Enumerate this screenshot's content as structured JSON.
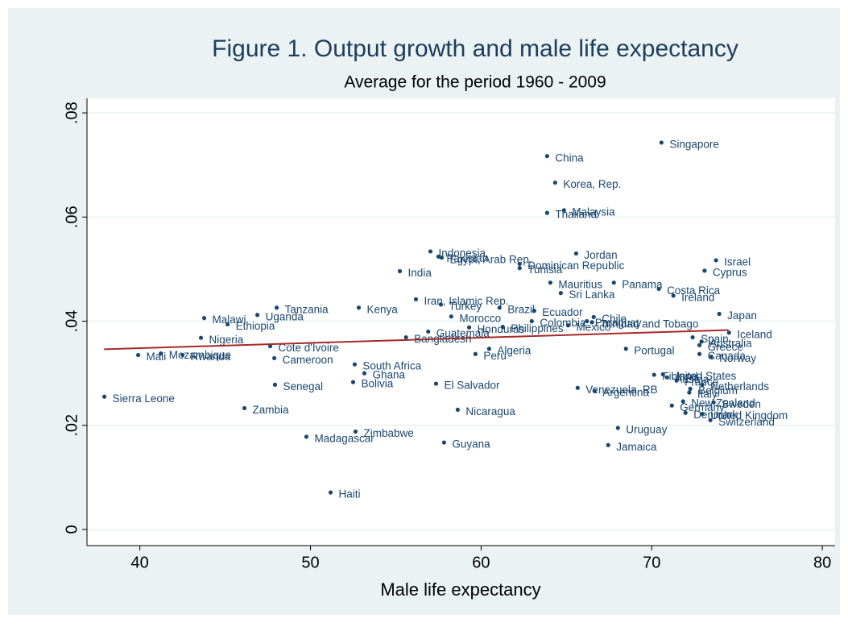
{
  "chart_data": {
    "type": "scatter",
    "title": "Figure 1. Output growth and male life expectancy",
    "subtitle": "Average for the period 1960 - 2009",
    "x_label": "Male life expectancy",
    "color": "#1a476f",
    "point_labels": [
      "Singapore",
      "China",
      "Korea, Rep.",
      "Malaysia",
      "Thailand",
      "Indonesia",
      "Pakistan",
      "Egypt, Arab Rep.",
      "Jordan",
      "Israel",
      "Dominican Republic",
      "Tunisia",
      "India",
      "Cyprus",
      "Mauritius",
      "Panama",
      "Sri Lanka",
      "Costa Rica",
      "Ireland",
      "Iran, Islamic Rep.",
      "Turkey",
      "Brazil",
      "Tanzania",
      "Kenya",
      "Ecuador",
      "Uganda",
      "Japan",
      "Malawi",
      "Morocco",
      "Chile",
      "Colombia",
      "Paraguay",
      "Trinidad and Tobago",
      "Mexico",
      "Ethiopia",
      "Honduras",
      "Philippines",
      "Iceland",
      "Guatemala",
      "Bangladesh",
      "Nigeria",
      "Spain",
      "Australia",
      "Greece",
      "Cote d'Ivoire",
      "Algeria",
      "Portugal",
      "Peru",
      "Canada",
      "Mali",
      "Mozambique",
      "Rwanda",
      "Norway",
      "Cameroon",
      "South Africa",
      "Ghana",
      "United States",
      "Finland",
      "Austria",
      "France",
      "Senegal",
      "Bolivia",
      "El Salvador",
      "Netherlands",
      "Venezuela, RB",
      "Argentina",
      "Belgium",
      "Italy",
      "Sierra Leone",
      "New Zealand",
      "Sweden",
      "Germany",
      "Zambia",
      "Nicaragua",
      "Denmark",
      "United Kingdom",
      "Switzerland",
      "Uruguay",
      "Zimbabwe",
      "Madagascar",
      "Guyana",
      "Jamaica",
      "Haiti"
    ],
    "x": [
      70.57,
      63.87,
      64.34,
      64.86,
      63.87,
      57.03,
      57.5,
      57.69,
      65.57,
      73.77,
      62.26,
      62.26,
      55.24,
      73.1,
      64.06,
      67.78,
      64.67,
      70.42,
      71.27,
      56.18,
      57.64,
      61.08,
      48.02,
      52.83,
      63.11,
      46.89,
      73.96,
      43.77,
      58.25,
      66.6,
      62.97,
      66.2,
      66.5,
      65.1,
      45.14,
      59.3,
      61.27,
      74.53,
      56.9,
      55.6,
      43.58,
      72.4,
      72.92,
      72.8,
      47.64,
      60.47,
      68.49,
      59.67,
      72.8,
      39.9,
      41.23,
      42.5,
      73.49,
      47.88,
      52.59,
      53.16,
      70.66,
      70.14,
      70.9,
      71.46,
      47.92,
      52.5,
      57.36,
      72.97,
      65.66,
      66.65,
      72.26,
      72.2,
      37.92,
      71.84,
      73.63,
      71.18,
      46.13,
      58.63,
      71.98,
      72.97,
      73.44,
      68.02,
      52.64,
      49.76,
      57.83,
      67.45,
      51.18
    ],
    "values": [
      0.0743,
      0.0717,
      0.0666,
      0.0613,
      0.0608,
      0.0534,
      0.0524,
      0.0522,
      0.053,
      0.0517,
      0.051,
      0.0502,
      0.0496,
      0.0497,
      0.0474,
      0.0474,
      0.0454,
      0.0462,
      0.0449,
      0.0442,
      0.0432,
      0.0426,
      0.0426,
      0.0426,
      0.042,
      0.0412,
      0.0414,
      0.0406,
      0.0409,
      0.0408,
      0.04,
      0.04,
      0.0398,
      0.0392,
      0.0394,
      0.0388,
      0.0389,
      0.0378,
      0.038,
      0.0369,
      0.0368,
      0.0369,
      0.0361,
      0.0354,
      0.0352,
      0.0347,
      0.0347,
      0.0337,
      0.0337,
      0.0335,
      0.0338,
      0.0335,
      0.0332,
      0.0329,
      0.0317,
      0.03,
      0.0298,
      0.0297,
      0.0292,
      0.0286,
      0.0278,
      0.0283,
      0.028,
      0.0278,
      0.0272,
      0.0266,
      0.027,
      0.0263,
      0.0255,
      0.0246,
      0.0244,
      0.0238,
      0.0233,
      0.023,
      0.0224,
      0.0222,
      0.021,
      0.0195,
      0.0188,
      0.0178,
      0.0167,
      0.0162,
      0.0071
    ],
    "fit_line": {
      "x": [
        37.9,
        74.5
      ],
      "y": [
        0.0346,
        0.0383
      ],
      "color": "#a52a2a"
    },
    "xlim": [
      36.9,
      80.75
    ],
    "ylim": [
      -0.0031,
      0.0828
    ],
    "xticks": [
      40,
      50,
      60,
      70,
      80
    ],
    "yticks": [
      {
        "value": 0,
        "label": "0"
      },
      {
        "value": 0.02,
        "label": ".02"
      },
      {
        "value": 0.04,
        "label": ".04"
      },
      {
        "value": 0.06,
        "label": ".06"
      },
      {
        "value": 0.08,
        "label": ".08"
      }
    ],
    "grid": true
  }
}
